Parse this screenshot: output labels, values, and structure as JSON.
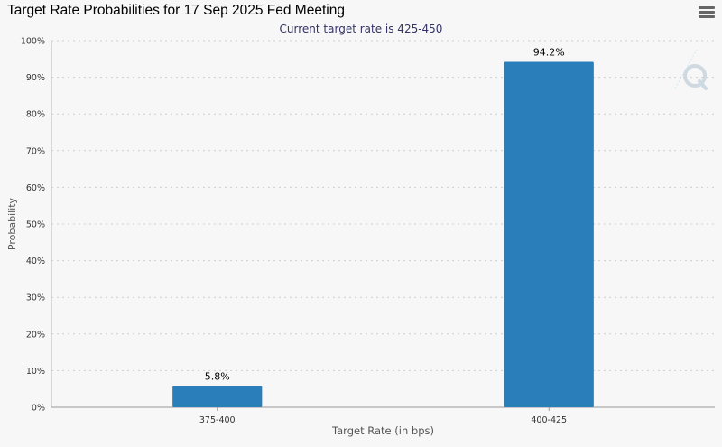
{
  "chart_title": "Target Rate Probabilities for 17 Sep 2025 Fed Meeting",
  "menu_icon": "hamburger-menu-icon",
  "colors": {
    "bar": "#2a7fba",
    "plot_background": "#f7f7f7",
    "grid": "#cfcfcf",
    "subtitle": "#333366"
  },
  "chart_data": {
    "type": "bar",
    "title": "Target Rate Probabilities for 17 Sep 2025 Fed Meeting",
    "subtitle": "Current target rate is 425-450",
    "xlabel": "Target Rate (in bps)",
    "ylabel": "Probability",
    "categories": [
      "375-400",
      "400-425"
    ],
    "values": [
      5.8,
      94.2
    ],
    "data_labels": [
      "5.8%",
      "94.2%"
    ],
    "ylim": [
      0,
      100
    ],
    "yticks": [
      0,
      10,
      20,
      30,
      40,
      50,
      60,
      70,
      80,
      90,
      100
    ],
    "ytick_labels": [
      "0%",
      "10%",
      "20%",
      "30%",
      "40%",
      "50%",
      "60%",
      "70%",
      "80%",
      "90%",
      "100%"
    ],
    "grid": true,
    "legend": "none"
  }
}
